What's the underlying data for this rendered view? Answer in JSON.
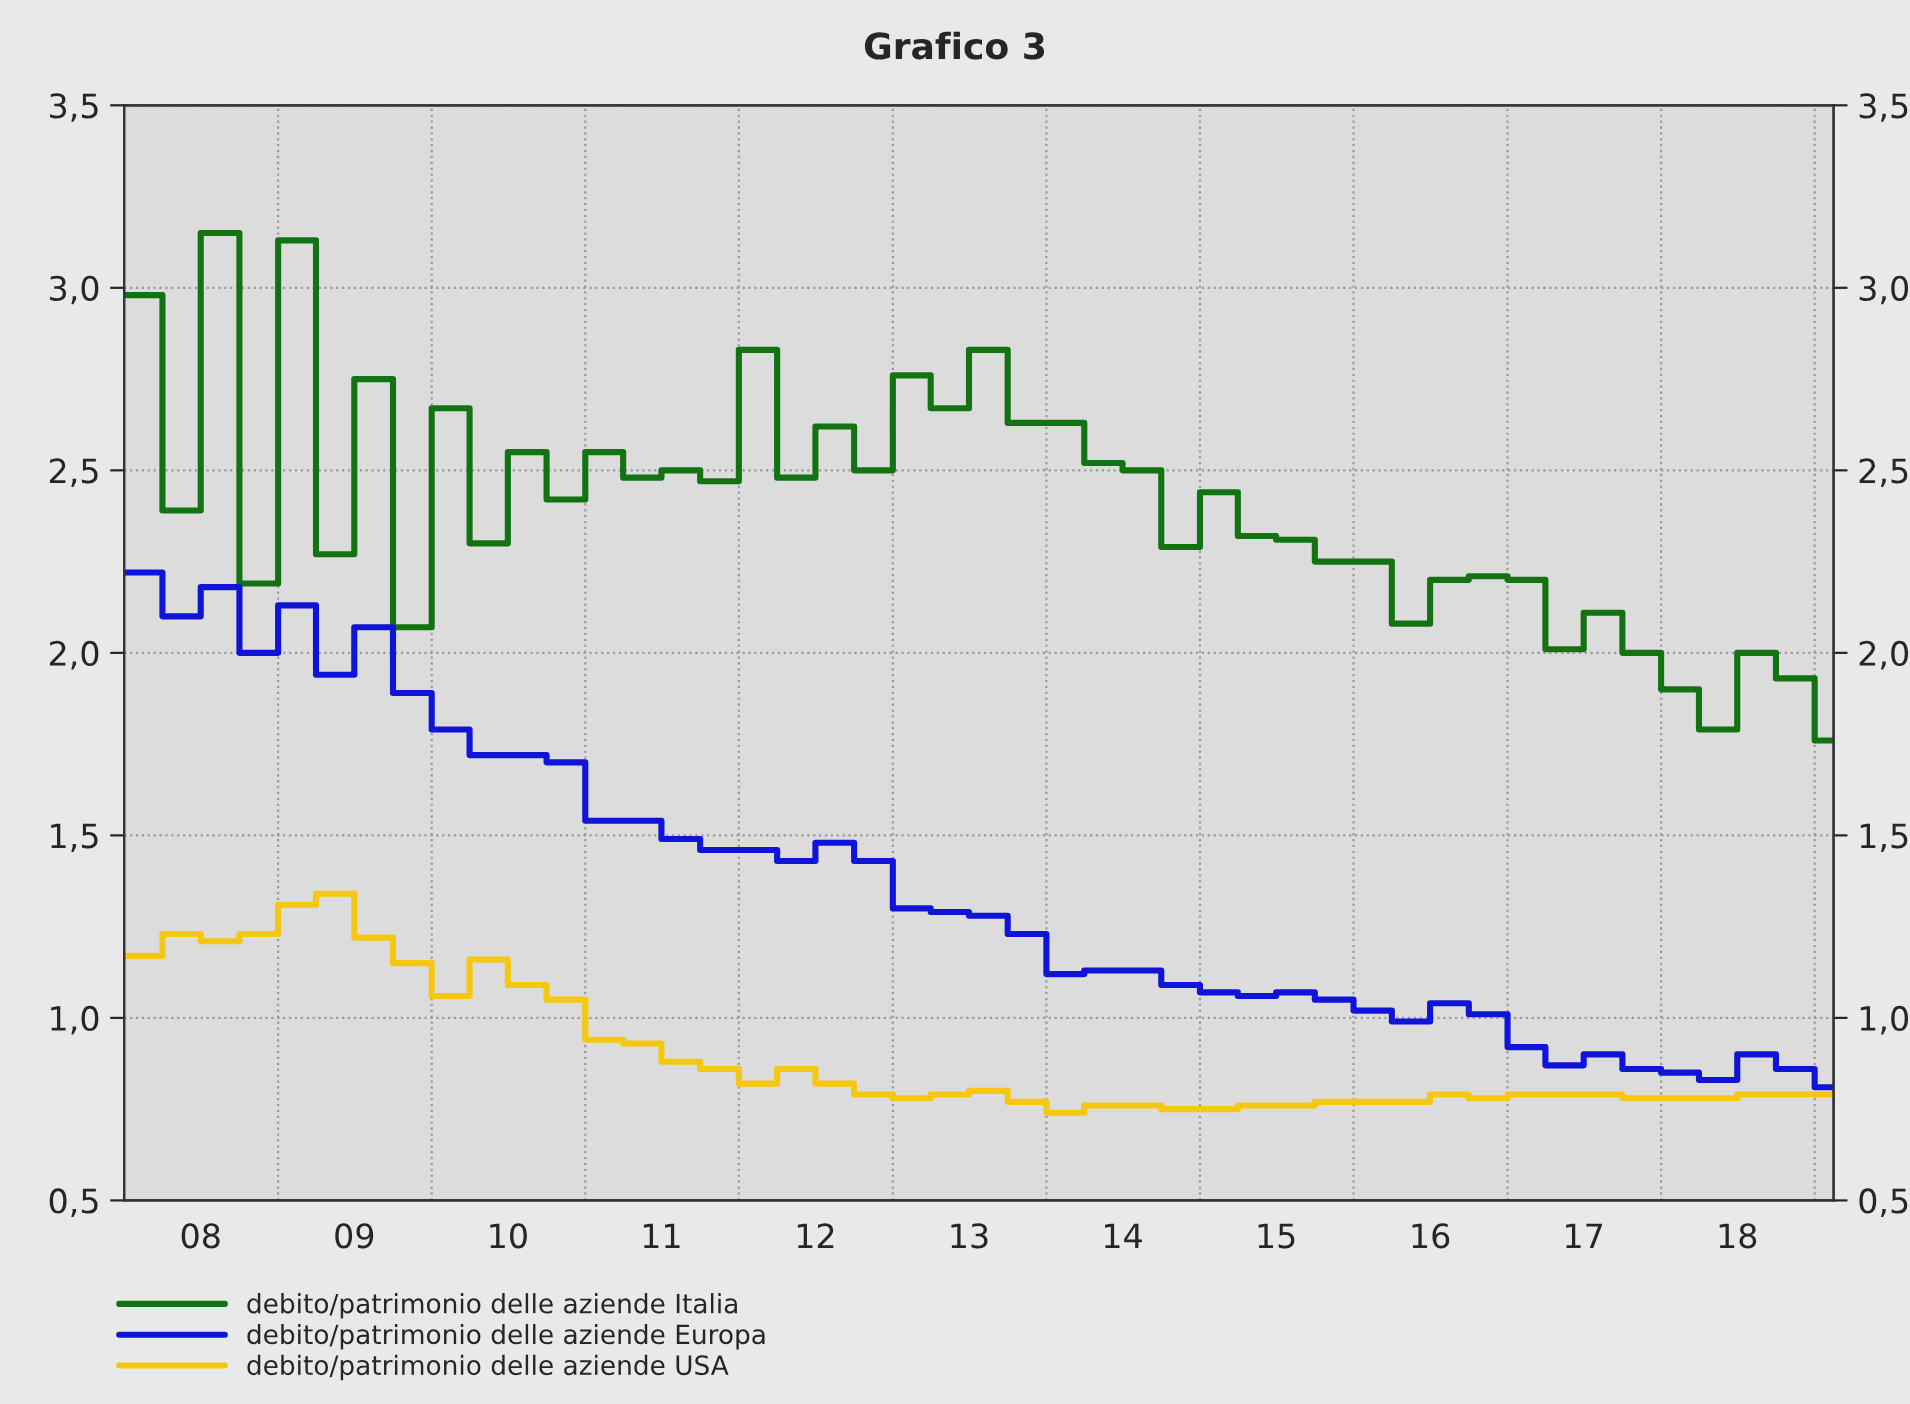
{
  "chart_data": {
    "type": "step",
    "title": "Grafico 3",
    "x": [
      "2008-01",
      "2008-04",
      "2008-07",
      "2008-10",
      "2009-01",
      "2009-04",
      "2009-07",
      "2009-10",
      "2010-01",
      "2010-04",
      "2010-07",
      "2010-10",
      "2011-01",
      "2011-04",
      "2011-07",
      "2011-10",
      "2012-01",
      "2012-04",
      "2012-07",
      "2012-10",
      "2013-01",
      "2013-04",
      "2013-07",
      "2013-10",
      "2014-01",
      "2014-04",
      "2014-07",
      "2014-10",
      "2015-01",
      "2015-04",
      "2015-07",
      "2015-10",
      "2016-01",
      "2016-04",
      "2016-07",
      "2016-10",
      "2017-01",
      "2017-04",
      "2017-07",
      "2017-10",
      "2018-01",
      "2018-04",
      "2018-07",
      "2018-10",
      "2019-01",
      "2019-02-15"
    ],
    "series": [
      {
        "name": "debito/patrimonio delle aziende Italia",
        "color": "#137313",
        "values": [
          2.98,
          2.39,
          3.15,
          2.19,
          3.13,
          2.27,
          2.75,
          2.07,
          2.67,
          2.3,
          2.55,
          2.42,
          2.55,
          2.48,
          2.5,
          2.47,
          2.83,
          2.48,
          2.62,
          2.5,
          2.76,
          2.67,
          2.83,
          2.63,
          2.63,
          2.52,
          2.5,
          2.29,
          2.44,
          2.32,
          2.31,
          2.25,
          2.25,
          2.08,
          2.2,
          2.21,
          2.2,
          2.01,
          2.11,
          2.0,
          1.9,
          1.79,
          2.0,
          1.93,
          1.76,
          1.76
        ]
      },
      {
        "name": "debito/patrimonio delle aziende Europa",
        "color": "#0f14d8",
        "values": [
          2.22,
          2.1,
          2.18,
          2.0,
          2.13,
          1.94,
          2.07,
          1.89,
          1.79,
          1.72,
          1.72,
          1.7,
          1.54,
          1.54,
          1.49,
          1.46,
          1.46,
          1.43,
          1.48,
          1.43,
          1.3,
          1.29,
          1.28,
          1.23,
          1.12,
          1.13,
          1.13,
          1.09,
          1.07,
          1.06,
          1.07,
          1.05,
          1.02,
          0.99,
          1.04,
          1.01,
          0.92,
          0.87,
          0.9,
          0.86,
          0.85,
          0.83,
          0.9,
          0.86,
          0.81,
          0.81
        ]
      },
      {
        "name": "debito/patrimonio delle aziende USA",
        "color": "#f5c80f",
        "values": [
          1.17,
          1.23,
          1.21,
          1.23,
          1.31,
          1.34,
          1.22,
          1.15,
          1.06,
          1.16,
          1.09,
          1.05,
          0.94,
          0.93,
          0.88,
          0.86,
          0.82,
          0.86,
          0.82,
          0.79,
          0.78,
          0.79,
          0.8,
          0.77,
          0.74,
          0.76,
          0.76,
          0.75,
          0.75,
          0.76,
          0.76,
          0.77,
          0.77,
          0.77,
          0.79,
          0.78,
          0.79,
          0.79,
          0.79,
          0.78,
          0.78,
          0.78,
          0.79,
          0.79,
          0.79,
          0.79
        ]
      }
    ],
    "xlim": [
      "2008-01-01",
      "2019-02-15"
    ],
    "xticks": [
      {
        "value": "2009-01-01",
        "label": null
      },
      {
        "value": "2010-01-01",
        "label": null
      },
      {
        "value": "2011-01-01",
        "label": null
      },
      {
        "value": "2012-01-01",
        "label": null
      },
      {
        "value": "2013-01-01",
        "label": null
      },
      {
        "value": "2014-01-01",
        "label": null
      },
      {
        "value": "2015-01-01",
        "label": null
      },
      {
        "value": "2016-01-01",
        "label": null
      },
      {
        "value": "2017-01-01",
        "label": null
      },
      {
        "value": "2018-01-01",
        "label": null
      },
      {
        "value": "2019-01-01",
        "label": null
      },
      {
        "value": "2008-07-01",
        "label": "08"
      },
      {
        "value": "2009-07-01",
        "label": "09"
      },
      {
        "value": "2010-07-01",
        "label": "10"
      },
      {
        "value": "2011-07-01",
        "label": "11"
      },
      {
        "value": "2012-07-01",
        "label": "12"
      },
      {
        "value": "2013-07-01",
        "label": "13"
      },
      {
        "value": "2014-07-01",
        "label": "14"
      },
      {
        "value": "2015-07-01",
        "label": "15"
      },
      {
        "value": "2016-07-01",
        "label": "16"
      },
      {
        "value": "2017-07-01",
        "label": "17"
      },
      {
        "value": "2018-07-01",
        "label": "18"
      }
    ],
    "ylim": [
      0.5,
      3.5
    ],
    "yticks": [
      {
        "value": 0.5,
        "label": "0,5"
      },
      {
        "value": 1.0,
        "label": "1,0"
      },
      {
        "value": 1.5,
        "label": "1,5"
      },
      {
        "value": 2.0,
        "label": "2,0"
      },
      {
        "value": 2.5,
        "label": "2,5"
      },
      {
        "value": 3.0,
        "label": "3,0"
      },
      {
        "value": 3.5,
        "label": "3,5"
      }
    ],
    "y2lim": [
      0.5,
      3.5
    ],
    "y2ticks": [
      {
        "value": 0.5,
        "label": "0,5"
      },
      {
        "value": 1.0,
        "label": "1,0"
      },
      {
        "value": 1.5,
        "label": "1,5"
      },
      {
        "value": 2.0,
        "label": "2,0"
      },
      {
        "value": 2.5,
        "label": "2,5"
      },
      {
        "value": 3.0,
        "label": "3,0"
      },
      {
        "value": 3.5,
        "label": "3,5"
      }
    ],
    "grid": true,
    "legend": "bottom left",
    "line_style": "solid"
  }
}
